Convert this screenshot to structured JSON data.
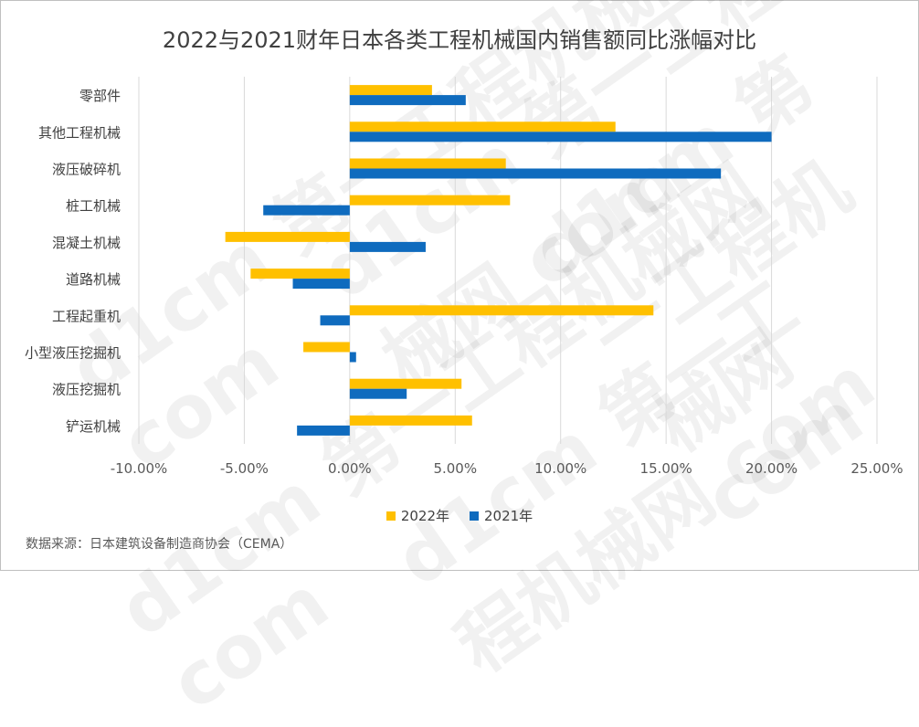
{
  "colors": {
    "series_2022": "#FFC000",
    "series_2021": "#0F6BBE",
    "grid": "#d9d9d9",
    "text": "#404040"
  },
  "watermark_text": "d1cm 第一工程机械网 com",
  "source_text": "数据来源：日本建筑设备制造商协会（CEMA）",
  "chart_data": {
    "type": "bar",
    "orientation": "horizontal",
    "title": "2022与2021财年日本各类工程机械国内销售额同比涨幅对比",
    "categories": [
      "零部件",
      "其他工程机械",
      "液压破碎机",
      "桩工机械",
      "混凝土机械",
      "道路机械",
      "工程起重机",
      "小型液压挖掘机",
      "液压挖掘机",
      "铲运机械"
    ],
    "series": [
      {
        "name": "2022年",
        "values": [
          3.9,
          12.6,
          7.4,
          7.6,
          -5.9,
          -4.7,
          14.4,
          -2.2,
          5.3,
          5.8
        ]
      },
      {
        "name": "2021年",
        "values": [
          5.5,
          20.0,
          17.6,
          -4.1,
          3.6,
          -2.7,
          -1.4,
          0.3,
          2.7,
          -2.5
        ]
      }
    ],
    "xlim": [
      -10,
      25
    ],
    "x_ticks": [
      -10,
      -5,
      0,
      5,
      10,
      15,
      20,
      25
    ],
    "x_tick_labels": [
      "-10.00%",
      "-5.00%",
      "0.00%",
      "5.00%",
      "10.00%",
      "15.00%",
      "20.00%",
      "25.00%"
    ],
    "grid": true,
    "legend_position": "bottom"
  }
}
